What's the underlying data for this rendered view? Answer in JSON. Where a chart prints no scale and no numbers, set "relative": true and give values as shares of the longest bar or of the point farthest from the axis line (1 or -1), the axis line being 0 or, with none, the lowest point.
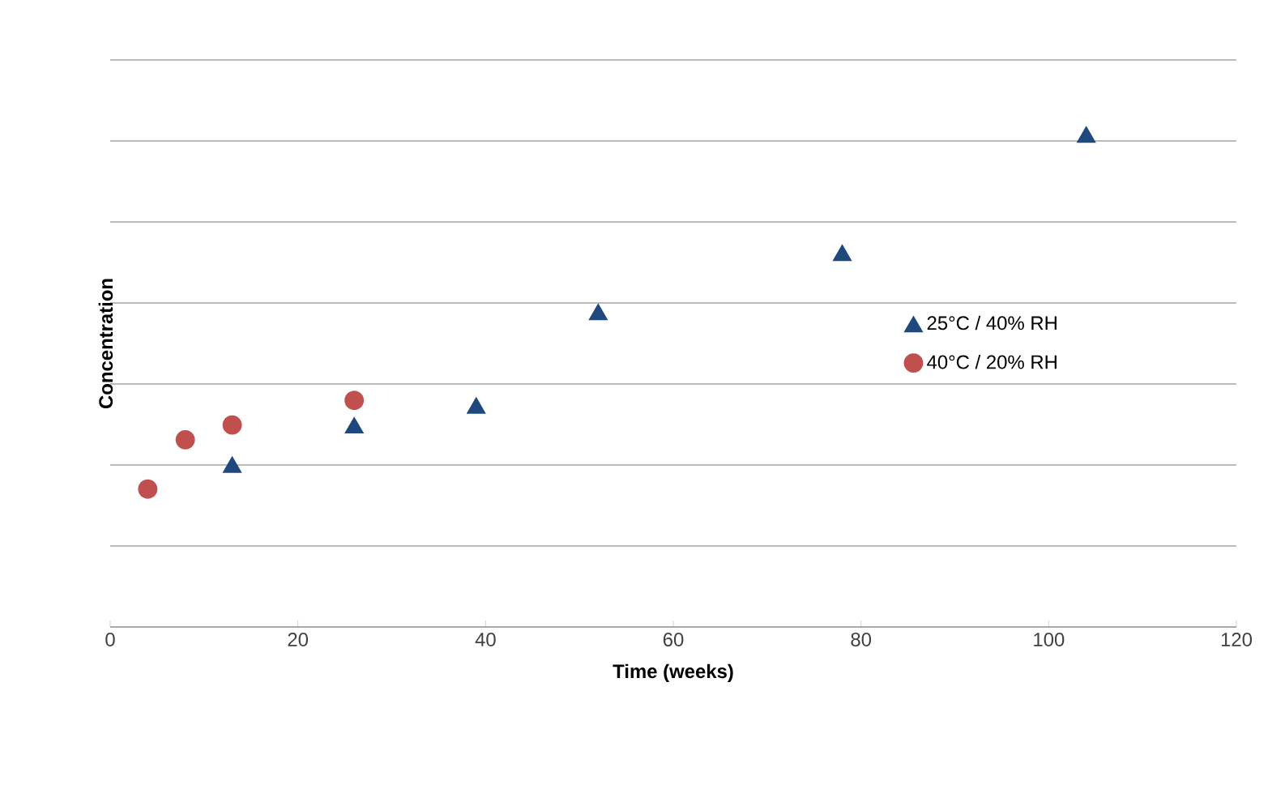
{
  "chart_data": {
    "type": "scatter",
    "xlabel": "Time (weeks)",
    "ylabel": "Concentration",
    "relative": true,
    "xlim": [
      0,
      120
    ],
    "xticks": [
      0,
      20,
      40,
      60,
      80,
      100,
      120
    ],
    "grid": "y",
    "legend": "right",
    "series": [
      {
        "name": "25°C / 40% RH",
        "color": "#1f497d",
        "marker": "triangle",
        "x": [
          13,
          26,
          39,
          52,
          78,
          104
        ],
        "values": [
          0.33,
          0.41,
          0.45,
          0.64,
          0.76,
          1
        ]
      },
      {
        "name": "40°C / 20% RH",
        "color": "#c0504d",
        "marker": "circle",
        "x": [
          4,
          8,
          13,
          26
        ],
        "values": [
          0.28,
          0.38,
          0.41,
          0.46
        ]
      }
    ]
  }
}
